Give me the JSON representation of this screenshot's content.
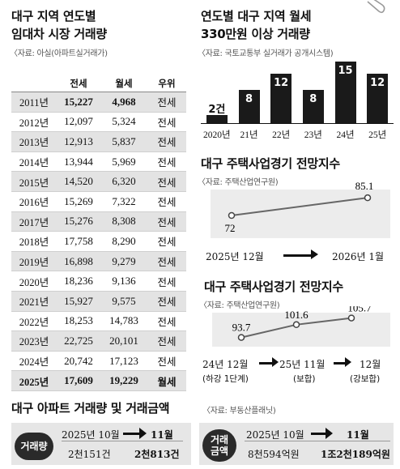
{
  "left": {
    "title_line1": "대구 지역 연도별",
    "title_line2": "임대차 시장 거래량",
    "source": "〈자료: 아실(아파트실거래가)",
    "headers": [
      "전세",
      "월세",
      "우위"
    ],
    "rows": [
      {
        "year": "2011년",
        "jeonse": "15,227",
        "wolse": "4,968",
        "lead": "전세"
      },
      {
        "year": "2012년",
        "jeonse": "12,097",
        "wolse": "5,324",
        "lead": "전세"
      },
      {
        "year": "2013년",
        "jeonse": "12,913",
        "wolse": "5,837",
        "lead": "전세"
      },
      {
        "year": "2014년",
        "jeonse": "13,944",
        "wolse": "5,969",
        "lead": "전세"
      },
      {
        "year": "2015년",
        "jeonse": "14,520",
        "wolse": "6,320",
        "lead": "전세"
      },
      {
        "year": "2016년",
        "jeonse": "15,269",
        "wolse": "7,322",
        "lead": "전세"
      },
      {
        "year": "2017년",
        "jeonse": "15,276",
        "wolse": "8,308",
        "lead": "전세"
      },
      {
        "year": "2018년",
        "jeonse": "17,758",
        "wolse": "8,290",
        "lead": "전세"
      },
      {
        "year": "2019년",
        "jeonse": "16,898",
        "wolse": "9,279",
        "lead": "전세"
      },
      {
        "year": "2020년",
        "jeonse": "18,236",
        "wolse": "9,136",
        "lead": "전세"
      },
      {
        "year": "2021년",
        "jeonse": "15,927",
        "wolse": "9,575",
        "lead": "전세"
      },
      {
        "year": "2022년",
        "jeonse": "18,253",
        "wolse": "14,783",
        "lead": "전세"
      },
      {
        "year": "2023년",
        "jeonse": "22,725",
        "wolse": "20,101",
        "lead": "전세"
      },
      {
        "year": "2024년",
        "jeonse": "20,742",
        "wolse": "17,123",
        "lead": "전세"
      },
      {
        "year": "2025년",
        "jeonse": "17,609",
        "wolse": "19,229",
        "lead": "월세"
      }
    ]
  },
  "bar_section": {
    "title_line1": "연도별 대구 지역 월세",
    "title_line2": "330만원 이상 거래량",
    "source": "〈자료: 국토교통부 실거래가 공개시스템)"
  },
  "chart_data": [
    {
      "type": "bar",
      "title": "연도별 대구 지역 월세 330만원 이상 거래량",
      "categories": [
        "2020년",
        "21년",
        "22년",
        "23년",
        "24년",
        "25년"
      ],
      "values": [
        2,
        8,
        12,
        8,
        15,
        12
      ],
      "value_labels": [
        "2건",
        "8",
        "12",
        "8",
        "15",
        "12"
      ],
      "ylim": [
        0,
        15
      ],
      "colors": {
        "bar": "#1a1a1a"
      }
    },
    {
      "type": "line",
      "title": "대구 주택사업경기 전망지수",
      "categories": [
        "2025년 12월",
        "2026년 1월"
      ],
      "values": [
        72,
        85.1
      ],
      "value_labels": [
        "72",
        "85.1"
      ]
    },
    {
      "type": "line",
      "title": "대구 주택사업경기 전망지수",
      "categories": [
        "24년 12월",
        "25년 11월",
        "12월"
      ],
      "values": [
        93.7,
        101.6,
        105.7
      ],
      "value_labels": [
        "93.7",
        "101.6",
        "105.7"
      ],
      "notes": [
        "(하강 1단계)",
        "(보합)",
        "(강보합)"
      ]
    }
  ],
  "line1": {
    "title": "대구 주택사업경기 전망지수",
    "source": "〈자료: 주택산업연구원)"
  },
  "line2": {
    "title": "대구 주택사업경기 전망지수",
    "source": "〈자료: 주택산업연구원)"
  },
  "bottom": {
    "title": "대구 아파트 거래량 및 거래금액",
    "source": "〈자료: 부동산플래닛)",
    "volume": {
      "label": "거래량",
      "from_month": "2025년 10월",
      "to_month": "11월",
      "from_value": "2천151건",
      "to_value": "2천813건"
    },
    "amount": {
      "label_line1": "거래",
      "label_line2": "금액",
      "from_month": "2025년 10월",
      "to_month": "11월",
      "from_value": "8천594억원",
      "to_value": "1조2천189억원"
    }
  }
}
